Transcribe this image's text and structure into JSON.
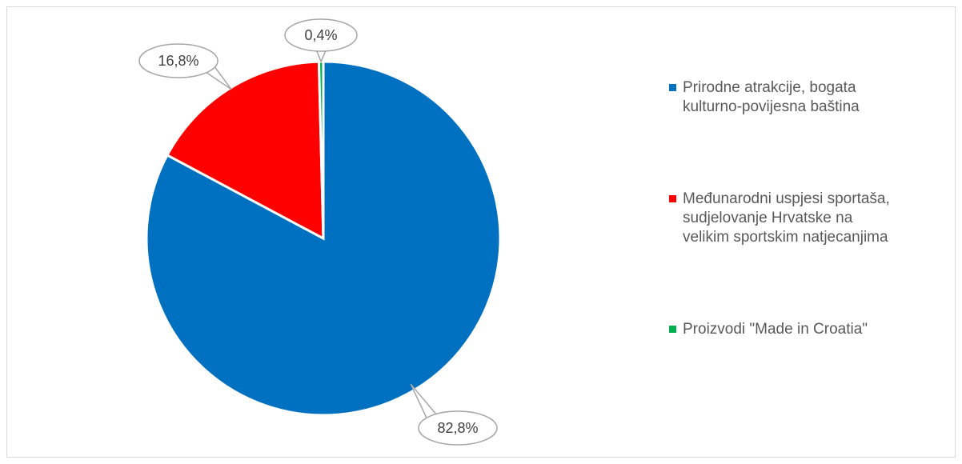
{
  "chart_data": {
    "type": "pie",
    "title": "",
    "slices": [
      {
        "label": "Prirodne atrakcije, bogata\nkulturno-povijesna baština",
        "value": 82.8,
        "display": "82,8%",
        "color": "#0070c0"
      },
      {
        "label": "Međunarodni uspjesi sportaša,\nsudjelovanje Hrvatske na\nvelikim sportskim natjecanjima",
        "value": 16.8,
        "display": "16,8%",
        "color": "#ff0000"
      },
      {
        "label": "Proizvodi \"Made in Croatia\"",
        "value": 0.4,
        "display": "0,4%",
        "color": "#00b050"
      }
    ],
    "legend_position": "right"
  }
}
